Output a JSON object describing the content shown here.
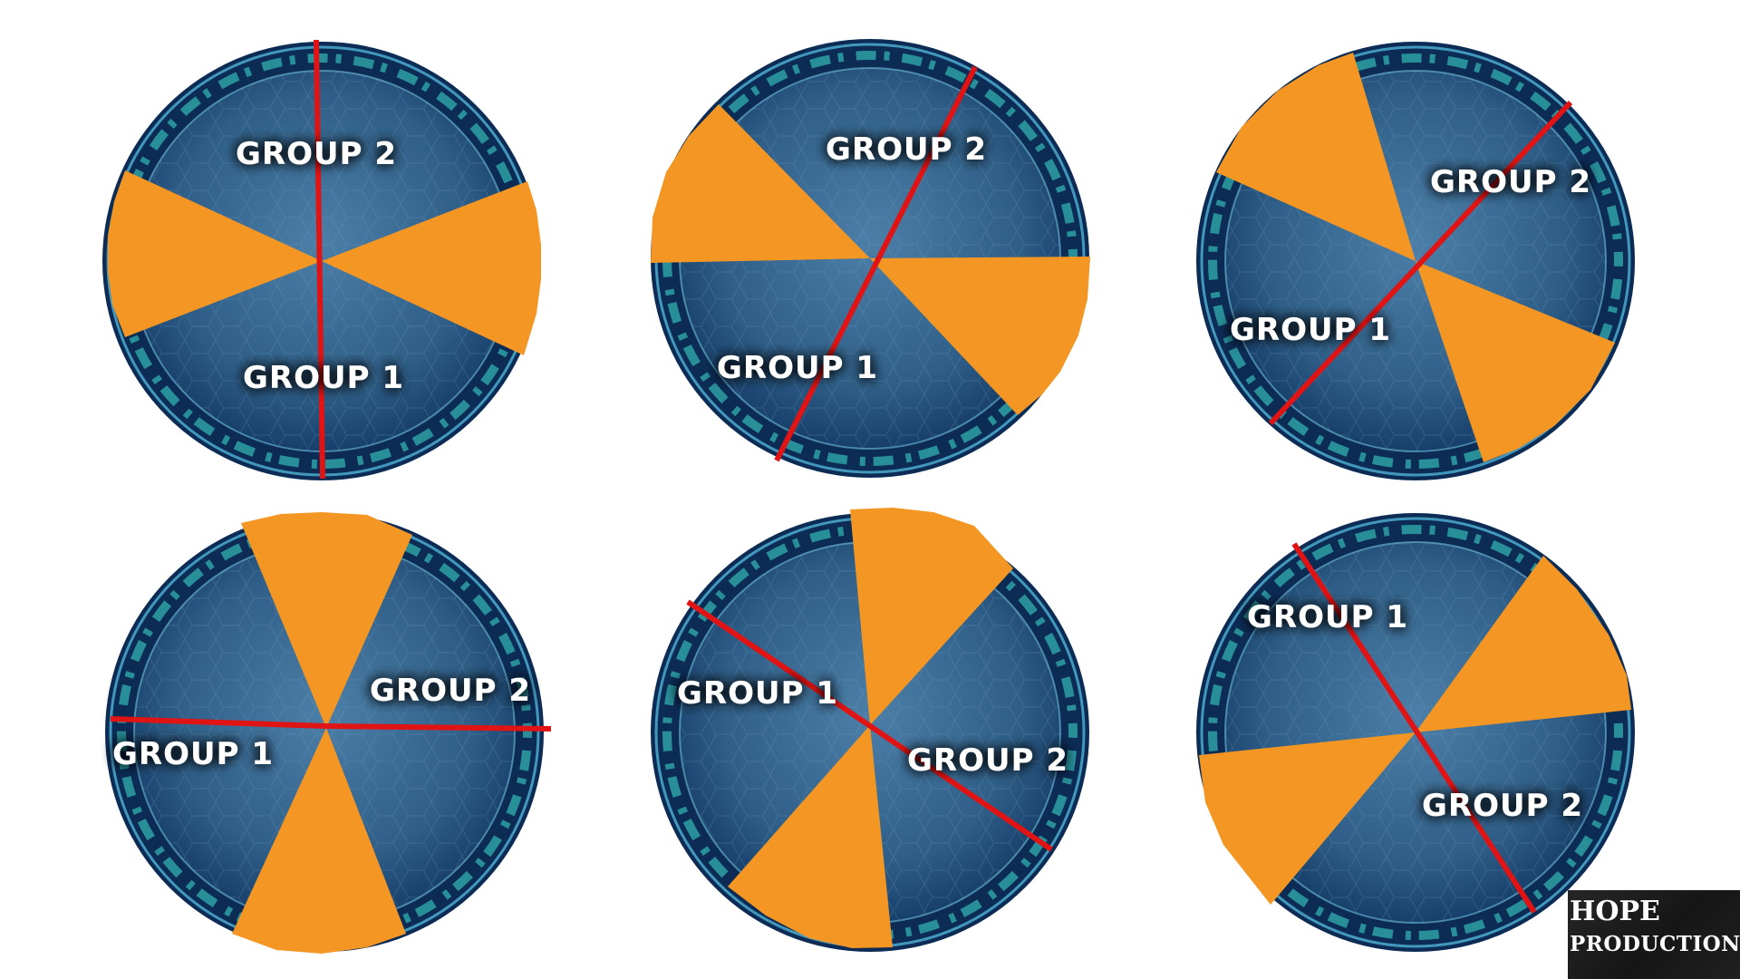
{
  "colors": {
    "wedge": "#F39623",
    "divider": "#E01414",
    "arena_inner": "#3A6A92",
    "arena_ring": "#0C2B55",
    "arena_glow": "#4FE3D8",
    "label": "#FFFFFF"
  },
  "arenas": [
    {
      "name": "arena-1",
      "group_1_label": "GROUP 1",
      "group_2_label": "GROUP 2"
    },
    {
      "name": "arena-2",
      "group_1_label": "GROUP 1",
      "group_2_label": "GROUP 2"
    },
    {
      "name": "arena-3",
      "group_1_label": "GROUP 1",
      "group_2_label": "GROUP 2"
    },
    {
      "name": "arena-4",
      "group_1_label": "GROUP 1",
      "group_2_label": "GROUP 2"
    },
    {
      "name": "arena-5",
      "group_1_label": "GROUP 1",
      "group_2_label": "GROUP 2"
    },
    {
      "name": "arena-6",
      "group_1_label": "GROUP 1",
      "group_2_label": "GROUP 2"
    }
  ],
  "watermark": {
    "line1": "HOPE",
    "line2": "PRODUCTIONS"
  }
}
